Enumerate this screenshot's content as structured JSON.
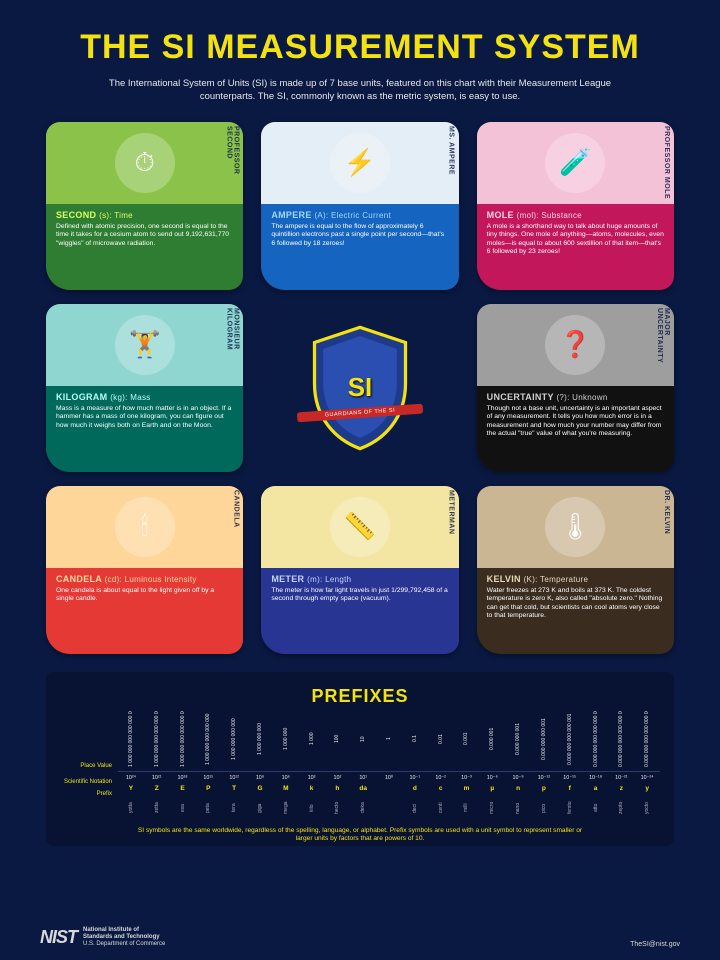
{
  "title": "THE SI MEASUREMENT SYSTEM",
  "subtitle": "The International System of Units (SI) is made up of 7 base units, featured on this chart with their Measurement League counterparts. The SI, commonly known as the metric system, is easy to use.",
  "shield": {
    "label": "SI",
    "banner": "GUARDIANS OF THE SI"
  },
  "cards": [
    {
      "hero": "PROFESSOR SECOND",
      "unit": "SECOND",
      "sym": "(s): Time",
      "desc": "Defined with atomic precision, one second is equal to the time it takes for a cesium atom to send out 9,192,631,770 \"wiggles\" of microwave radiation.",
      "topColor": "#8bc34a",
      "bottomColor": "#2e7d32",
      "titleColor": "#d9ff66",
      "icon": "⏱"
    },
    {
      "hero": "MS. AMPERE",
      "unit": "AMPERE",
      "sym": "(A): Electric Current",
      "desc": "The ampere is equal to the flow of approximately 6 quintillion electrons past a single point per second—that's 6 followed by 18 zeroes!",
      "topColor": "#e3eef6",
      "bottomColor": "#1565c0",
      "titleColor": "#9fd8ff",
      "icon": "⚡"
    },
    {
      "hero": "PROFESSOR MOLE",
      "unit": "MOLE",
      "sym": "(mol): Substance",
      "desc": "A mole is a shorthand way to talk about huge amounts of tiny things. One mole of anything—atoms, molecules, even moles—is equal to about 600 sextillion of that item—that's 6 followed by 23 zeroes!",
      "topColor": "#f4c2d7",
      "bottomColor": "#c2185b",
      "titleColor": "#ffd0e3",
      "icon": "🧪"
    },
    {
      "hero": "MONSIEUR KILOGRAM",
      "unit": "KILOGRAM",
      "sym": "(kg): Mass",
      "desc": "Mass is a measure of how much matter is in an object. If a hammer has a mass of one kilogram, you can figure out how much it weighs both on Earth and on the Moon.",
      "topColor": "#8fd6d0",
      "bottomColor": "#00695c",
      "titleColor": "#b6fff6",
      "icon": "🏋"
    },
    null,
    {
      "hero": "MAJOR UNCERTAINTY",
      "unit": "UNCERTAINTY",
      "sym": "(?): Unknown",
      "desc": "Though not a base unit, uncertainty is an important aspect of any measurement. It tells you how much error is in a measurement and how much your number may differ from the actual \"true\" value of what you're measuring.",
      "topColor": "#9e9e9e",
      "bottomColor": "#111111",
      "titleColor": "#d0d0d0",
      "icon": "❓"
    },
    {
      "hero": "CANDELA",
      "unit": "CANDELA",
      "sym": "(cd): Luminous Intensity",
      "desc": "One candela is about equal to the light given off by a single candle.",
      "topColor": "#ffd699",
      "bottomColor": "#e53935",
      "titleColor": "#ffd9a0",
      "icon": "🕯"
    },
    {
      "hero": "METERMAN",
      "unit": "METER",
      "sym": "(m): Length",
      "desc": "The meter is how far light travels in just 1/299,792,458 of a second through empty space (vacuum).",
      "topColor": "#f3e6a3",
      "bottomColor": "#283593",
      "titleColor": "#c6d0ff",
      "icon": "📏"
    },
    {
      "hero": "DR. KELVIN",
      "unit": "KELVIN",
      "sym": "(K): Temperature",
      "desc": "Water freezes at 273 K and boils at 373 K. The coldest temperature is zero K, also called \"absolute zero.\" Nothing can get that cold, but scientists can cool atoms very close to that temperature.",
      "topColor": "#cbb694",
      "bottomColor": "#3a2d20",
      "titleColor": "#e9d8b8",
      "icon": "🌡"
    }
  ],
  "prefixes": {
    "title": "PREFIXES",
    "rowLabels": {
      "pv": "Place Value",
      "sn": "Scientific Notation",
      "pr": "Prefix"
    },
    "items": [
      {
        "sym": "Y",
        "name": "yotta",
        "exp": "10²⁴",
        "pv": "1 000 000 000 000 000 000 000 000"
      },
      {
        "sym": "Z",
        "name": "zetta",
        "exp": "10²¹",
        "pv": "1 000 000 000 000 000 000 000"
      },
      {
        "sym": "E",
        "name": "exa",
        "exp": "10¹⁸",
        "pv": "1 000 000 000 000 000 000"
      },
      {
        "sym": "P",
        "name": "peta",
        "exp": "10¹⁵",
        "pv": "1 000 000 000 000 000"
      },
      {
        "sym": "T",
        "name": "tera",
        "exp": "10¹²",
        "pv": "1 000 000 000 000"
      },
      {
        "sym": "G",
        "name": "giga",
        "exp": "10⁹",
        "pv": "1 000 000 000"
      },
      {
        "sym": "M",
        "name": "mega",
        "exp": "10⁶",
        "pv": "1 000 000"
      },
      {
        "sym": "k",
        "name": "kilo",
        "exp": "10³",
        "pv": "1 000"
      },
      {
        "sym": "h",
        "name": "hecto",
        "exp": "10²",
        "pv": "100"
      },
      {
        "sym": "da",
        "name": "deka",
        "exp": "10¹",
        "pv": "10"
      },
      {
        "sym": "",
        "name": "",
        "exp": "10⁰",
        "pv": "1"
      },
      {
        "sym": "d",
        "name": "deci",
        "exp": "10⁻¹",
        "pv": "0.1"
      },
      {
        "sym": "c",
        "name": "centi",
        "exp": "10⁻²",
        "pv": "0.01"
      },
      {
        "sym": "m",
        "name": "milli",
        "exp": "10⁻³",
        "pv": "0.001"
      },
      {
        "sym": "µ",
        "name": "micro",
        "exp": "10⁻⁶",
        "pv": "0.000 001"
      },
      {
        "sym": "n",
        "name": "nano",
        "exp": "10⁻⁹",
        "pv": "0.000 000 001"
      },
      {
        "sym": "p",
        "name": "pico",
        "exp": "10⁻¹²",
        "pv": "0.000 000 000 001"
      },
      {
        "sym": "f",
        "name": "femto",
        "exp": "10⁻¹⁵",
        "pv": "0.000 000 000 000 001"
      },
      {
        "sym": "a",
        "name": "atto",
        "exp": "10⁻¹⁸",
        "pv": "0.000 000 000 000 000 001"
      },
      {
        "sym": "z",
        "name": "zepto",
        "exp": "10⁻²¹",
        "pv": "0.000 000 000 000 000 000 001"
      },
      {
        "sym": "y",
        "name": "yocto",
        "exp": "10⁻²⁴",
        "pv": "0.000 000 000 000 000 000 000 001"
      }
    ],
    "footnote": "SI symbols are the same worldwide, regardless of the spelling, language, or alphabet. Prefix symbols are used with a unit symbol to represent smaller or larger units by factors that are powers of 10."
  },
  "footer": {
    "logoMark": "NIST",
    "logoText1": "National Institute of",
    "logoText2": "Standards and Technology",
    "logoText3": "U.S. Department of Commerce",
    "email": "TheSI@nist.gov"
  }
}
